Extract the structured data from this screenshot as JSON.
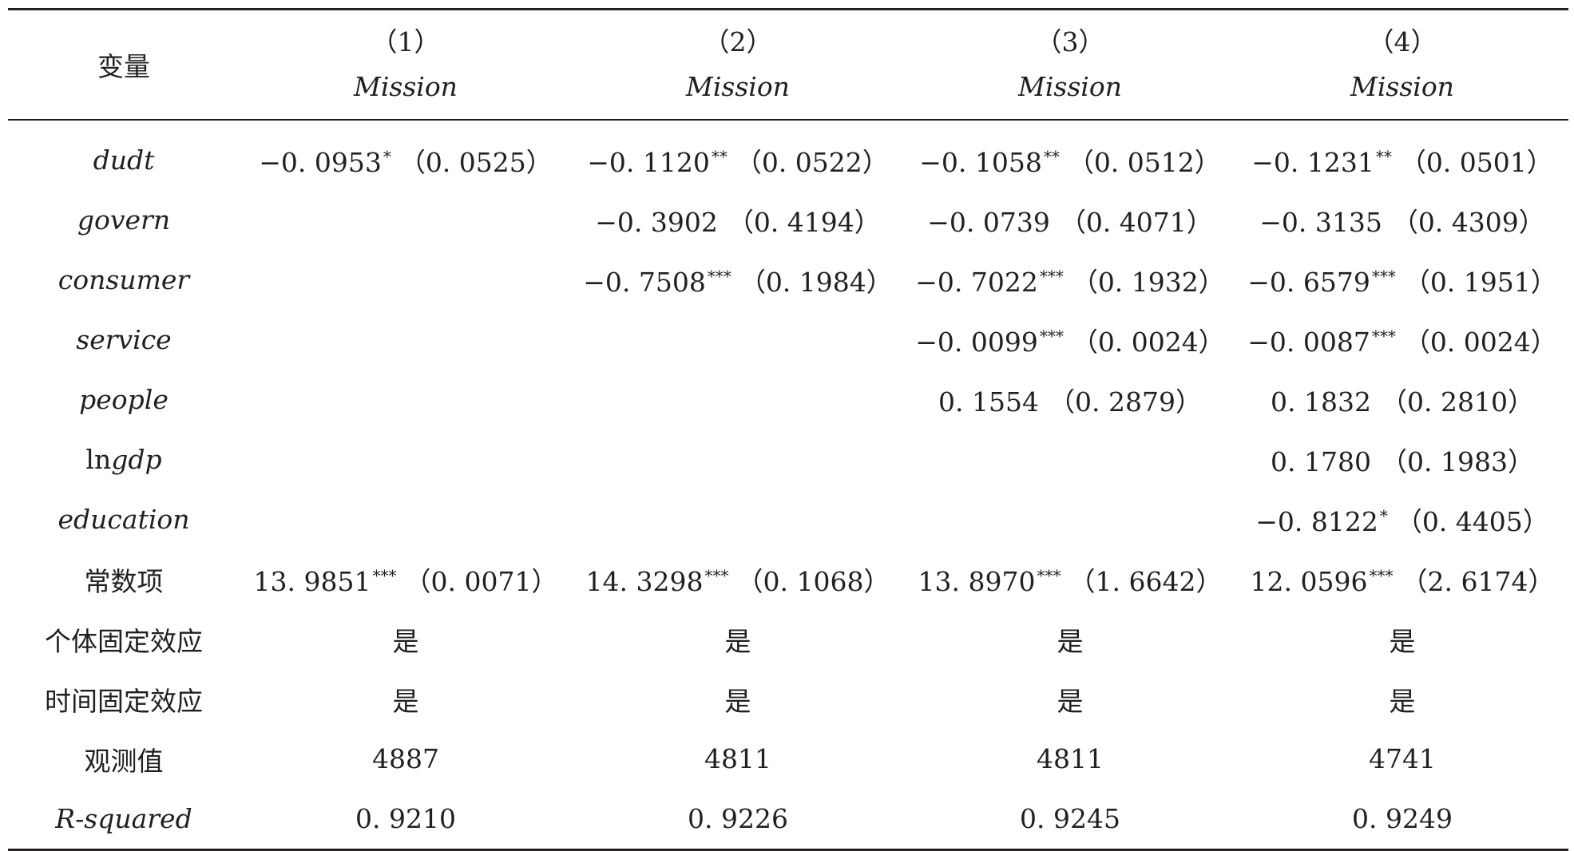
{
  "header": {
    "variable_label": "变量",
    "columns": [
      {
        "num": "（1）",
        "dep": "Mission"
      },
      {
        "num": "（2）",
        "dep": "Mission"
      },
      {
        "num": "（3）",
        "dep": "Mission"
      },
      {
        "num": "（4）",
        "dep": "Mission"
      }
    ]
  },
  "rows": [
    {
      "label": "dudt",
      "cells": [
        {
          "coef": "−0. 0953",
          "stars": "*",
          "se": "（0. 0525）"
        },
        {
          "coef": "−0. 1120",
          "stars": "**",
          "se": "（0. 0522）"
        },
        {
          "coef": "−0. 1058",
          "stars": "**",
          "se": "（0. 0512）"
        },
        {
          "coef": "−0. 1231",
          "stars": "**",
          "se": "（0. 0501）"
        }
      ]
    },
    {
      "label": "govern",
      "cells": [
        {
          "coef": "",
          "stars": "",
          "se": ""
        },
        {
          "coef": "−0. 3902",
          "stars": "",
          "se": "（0. 4194）"
        },
        {
          "coef": "−0. 0739",
          "stars": "",
          "se": "（0. 4071）"
        },
        {
          "coef": "−0. 3135",
          "stars": "",
          "se": "（0. 4309）"
        }
      ]
    },
    {
      "label": "consumer",
      "cells": [
        {
          "coef": "",
          "stars": "",
          "se": ""
        },
        {
          "coef": "−0. 7508",
          "stars": "***",
          "se": "（0. 1984）"
        },
        {
          "coef": "−0. 7022",
          "stars": "***",
          "se": "（0. 1932）"
        },
        {
          "coef": "−0. 6579",
          "stars": "***",
          "se": "（0. 1951）"
        }
      ]
    },
    {
      "label": "service",
      "cells": [
        {
          "coef": "",
          "stars": "",
          "se": ""
        },
        {
          "coef": "",
          "stars": "",
          "se": ""
        },
        {
          "coef": "−0. 0099",
          "stars": "***",
          "se": "（0. 0024）"
        },
        {
          "coef": "−0. 0087",
          "stars": "***",
          "se": "（0. 0024）"
        }
      ]
    },
    {
      "label": "people",
      "cells": [
        {
          "coef": "",
          "stars": "",
          "se": ""
        },
        {
          "coef": "",
          "stars": "",
          "se": ""
        },
        {
          "coef": "0. 1554",
          "stars": "",
          "se": "（0. 2879）"
        },
        {
          "coef": "0. 1832",
          "stars": "",
          "se": "（0. 2810）"
        }
      ]
    },
    {
      "label_prefix": "ln",
      "label": "gdp",
      "cells": [
        {
          "coef": "",
          "stars": "",
          "se": ""
        },
        {
          "coef": "",
          "stars": "",
          "se": ""
        },
        {
          "coef": "",
          "stars": "",
          "se": ""
        },
        {
          "coef": "0. 1780",
          "stars": "",
          "se": "（0. 1983）"
        }
      ]
    },
    {
      "label": "education",
      "cells": [
        {
          "coef": "",
          "stars": "",
          "se": ""
        },
        {
          "coef": "",
          "stars": "",
          "se": ""
        },
        {
          "coef": "",
          "stars": "",
          "se": ""
        },
        {
          "coef": "−0. 8122",
          "stars": "*",
          "se": "（0. 4405）"
        }
      ]
    },
    {
      "label": "常数项",
      "cells": [
        {
          "coef": "13. 9851",
          "stars": "***",
          "se": "（0. 0071）"
        },
        {
          "coef": "14. 3298",
          "stars": "***",
          "se": "（0. 1068）"
        },
        {
          "coef": "13. 8970",
          "stars": "***",
          "se": "（1. 6642）"
        },
        {
          "coef": "12. 0596",
          "stars": "***",
          "se": "（2. 6174）"
        }
      ]
    },
    {
      "label": "个体固定效应",
      "cells": [
        "是",
        "是",
        "是",
        "是"
      ]
    },
    {
      "label": "时间固定效应",
      "cells": [
        "是",
        "是",
        "是",
        "是"
      ]
    },
    {
      "label": "观测值",
      "cells": [
        "4887",
        "4811",
        "4811",
        "4741"
      ]
    },
    {
      "label": "R-squared",
      "cells": [
        "0. 9210",
        "0. 9226",
        "0. 9245",
        "0. 9249"
      ]
    }
  ]
}
